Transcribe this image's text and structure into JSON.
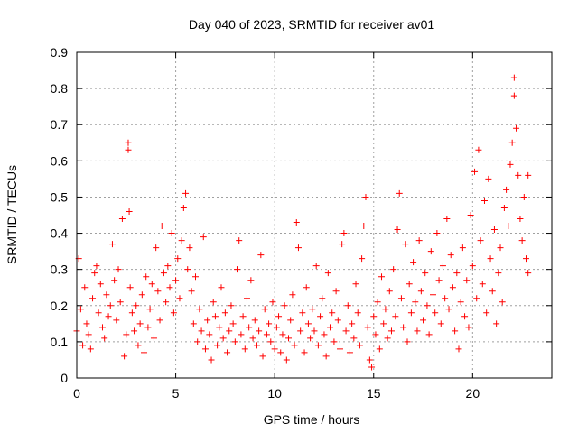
{
  "chart_data": {
    "type": "scatter",
    "title": "Day 040 of 2023, SRMTID for receiver av01",
    "xlabel": "GPS time / hours",
    "ylabel": "SRMTID / TECUs",
    "xlim": [
      0,
      24
    ],
    "ylim": [
      0,
      0.9
    ],
    "xticks": [
      0,
      5,
      10,
      15,
      20
    ],
    "xtick_labels": [
      "0",
      "5",
      "10",
      "15",
      "20"
    ],
    "yticks": [
      0,
      0.1,
      0.2,
      0.3,
      0.4,
      0.5,
      0.6,
      0.7,
      0.8,
      0.9
    ],
    "ytick_labels": [
      "0",
      "0.1",
      "0.2",
      "0.3",
      "0.4",
      "0.5",
      "0.6",
      "0.7",
      "0.8",
      "0.9"
    ],
    "grid": true,
    "marker": "plus",
    "marker_color": "#ff0000",
    "series": [
      {
        "name": "SRMTID",
        "points": [
          [
            0.0,
            0.13
          ],
          [
            0.1,
            0.33
          ],
          [
            0.2,
            0.19
          ],
          [
            0.3,
            0.09
          ],
          [
            0.4,
            0.25
          ],
          [
            0.5,
            0.15
          ],
          [
            0.6,
            0.12
          ],
          [
            0.7,
            0.08
          ],
          [
            0.8,
            0.22
          ],
          [
            0.9,
            0.29
          ],
          [
            1.0,
            0.31
          ],
          [
            1.1,
            0.18
          ],
          [
            1.2,
            0.26
          ],
          [
            1.3,
            0.14
          ],
          [
            1.4,
            0.11
          ],
          [
            1.5,
            0.23
          ],
          [
            1.6,
            0.17
          ],
          [
            1.7,
            0.2
          ],
          [
            1.8,
            0.37
          ],
          [
            1.9,
            0.27
          ],
          [
            2.0,
            0.16
          ],
          [
            2.1,
            0.3
          ],
          [
            2.2,
            0.21
          ],
          [
            2.3,
            0.44
          ],
          [
            2.4,
            0.06
          ],
          [
            2.5,
            0.12
          ],
          [
            2.6,
            0.65
          ],
          [
            2.6,
            0.63
          ],
          [
            2.65,
            0.46
          ],
          [
            2.7,
            0.25
          ],
          [
            2.8,
            0.18
          ],
          [
            2.9,
            0.13
          ],
          [
            3.0,
            0.2
          ],
          [
            3.1,
            0.09
          ],
          [
            3.2,
            0.15
          ],
          [
            3.3,
            0.23
          ],
          [
            3.4,
            0.07
          ],
          [
            3.5,
            0.28
          ],
          [
            3.6,
            0.14
          ],
          [
            3.7,
            0.19
          ],
          [
            3.8,
            0.26
          ],
          [
            3.9,
            0.11
          ],
          [
            4.0,
            0.36
          ],
          [
            4.1,
            0.24
          ],
          [
            4.2,
            0.16
          ],
          [
            4.3,
            0.42
          ],
          [
            4.4,
            0.29
          ],
          [
            4.5,
            0.21
          ],
          [
            4.6,
            0.31
          ],
          [
            4.7,
            0.25
          ],
          [
            4.8,
            0.4
          ],
          [
            4.9,
            0.18
          ],
          [
            5.0,
            0.27
          ],
          [
            5.1,
            0.33
          ],
          [
            5.2,
            0.22
          ],
          [
            5.3,
            0.38
          ],
          [
            5.4,
            0.47
          ],
          [
            5.5,
            0.51
          ],
          [
            5.6,
            0.3
          ],
          [
            5.7,
            0.36
          ],
          [
            5.8,
            0.24
          ],
          [
            5.9,
            0.15
          ],
          [
            6.0,
            0.28
          ],
          [
            6.1,
            0.1
          ],
          [
            6.2,
            0.19
          ],
          [
            6.3,
            0.13
          ],
          [
            6.4,
            0.39
          ],
          [
            6.5,
            0.08
          ],
          [
            6.6,
            0.16
          ],
          [
            6.7,
            0.12
          ],
          [
            6.8,
            0.05
          ],
          [
            6.9,
            0.21
          ],
          [
            7.0,
            0.17
          ],
          [
            7.1,
            0.09
          ],
          [
            7.2,
            0.14
          ],
          [
            7.3,
            0.25
          ],
          [
            7.4,
            0.11
          ],
          [
            7.5,
            0.18
          ],
          [
            7.6,
            0.07
          ],
          [
            7.7,
            0.13
          ],
          [
            7.8,
            0.2
          ],
          [
            7.9,
            0.15
          ],
          [
            8.0,
            0.1
          ],
          [
            8.1,
            0.3
          ],
          [
            8.2,
            0.38
          ],
          [
            8.3,
            0.12
          ],
          [
            8.4,
            0.17
          ],
          [
            8.5,
            0.08
          ],
          [
            8.6,
            0.22
          ],
          [
            8.7,
            0.14
          ],
          [
            8.8,
            0.27
          ],
          [
            8.9,
            0.11
          ],
          [
            9.0,
            0.16
          ],
          [
            9.1,
            0.09
          ],
          [
            9.2,
            0.13
          ],
          [
            9.3,
            0.34
          ],
          [
            9.4,
            0.06
          ],
          [
            9.5,
            0.19
          ],
          [
            9.6,
            0.12
          ],
          [
            9.7,
            0.15
          ],
          [
            9.8,
            0.1
          ],
          [
            9.9,
            0.21
          ],
          [
            10.0,
            0.08
          ],
          [
            10.1,
            0.14
          ],
          [
            10.2,
            0.17
          ],
          [
            10.3,
            0.07
          ],
          [
            10.4,
            0.12
          ],
          [
            10.5,
            0.2
          ],
          [
            10.6,
            0.05
          ],
          [
            10.7,
            0.11
          ],
          [
            10.8,
            0.16
          ],
          [
            10.9,
            0.23
          ],
          [
            11.0,
            0.09
          ],
          [
            11.1,
            0.43
          ],
          [
            11.2,
            0.36
          ],
          [
            11.3,
            0.13
          ],
          [
            11.4,
            0.18
          ],
          [
            11.5,
            0.07
          ],
          [
            11.6,
            0.25
          ],
          [
            11.7,
            0.15
          ],
          [
            11.8,
            0.11
          ],
          [
            11.9,
            0.19
          ],
          [
            12.0,
            0.13
          ],
          [
            12.1,
            0.31
          ],
          [
            12.2,
            0.09
          ],
          [
            12.3,
            0.17
          ],
          [
            12.4,
            0.22
          ],
          [
            12.5,
            0.12
          ],
          [
            12.6,
            0.06
          ],
          [
            12.7,
            0.29
          ],
          [
            12.8,
            0.14
          ],
          [
            12.9,
            0.18
          ],
          [
            13.0,
            0.1
          ],
          [
            13.1,
            0.24
          ],
          [
            13.2,
            0.16
          ],
          [
            13.3,
            0.08
          ],
          [
            13.4,
            0.37
          ],
          [
            13.5,
            0.4
          ],
          [
            13.6,
            0.13
          ],
          [
            13.7,
            0.2
          ],
          [
            13.8,
            0.07
          ],
          [
            13.9,
            0.15
          ],
          [
            14.0,
            0.11
          ],
          [
            14.1,
            0.26
          ],
          [
            14.2,
            0.18
          ],
          [
            14.3,
            0.09
          ],
          [
            14.4,
            0.33
          ],
          [
            14.5,
            0.42
          ],
          [
            14.6,
            0.5
          ],
          [
            14.7,
            0.14
          ],
          [
            14.8,
            0.05
          ],
          [
            14.9,
            0.03
          ],
          [
            15.0,
            0.17
          ],
          [
            15.1,
            0.12
          ],
          [
            15.2,
            0.21
          ],
          [
            15.3,
            0.08
          ],
          [
            15.4,
            0.28
          ],
          [
            15.5,
            0.15
          ],
          [
            15.6,
            0.19
          ],
          [
            15.7,
            0.11
          ],
          [
            15.8,
            0.24
          ],
          [
            15.9,
            0.13
          ],
          [
            16.0,
            0.3
          ],
          [
            16.1,
            0.17
          ],
          [
            16.2,
            0.41
          ],
          [
            16.3,
            0.51
          ],
          [
            16.4,
            0.22
          ],
          [
            16.5,
            0.14
          ],
          [
            16.6,
            0.37
          ],
          [
            16.7,
            0.1
          ],
          [
            16.8,
            0.26
          ],
          [
            16.9,
            0.18
          ],
          [
            17.0,
            0.32
          ],
          [
            17.1,
            0.21
          ],
          [
            17.2,
            0.13
          ],
          [
            17.3,
            0.38
          ],
          [
            17.4,
            0.24
          ],
          [
            17.5,
            0.16
          ],
          [
            17.6,
            0.29
          ],
          [
            17.7,
            0.2
          ],
          [
            17.8,
            0.12
          ],
          [
            17.9,
            0.35
          ],
          [
            18.0,
            0.23
          ],
          [
            18.1,
            0.18
          ],
          [
            18.2,
            0.4
          ],
          [
            18.3,
            0.27
          ],
          [
            18.4,
            0.15
          ],
          [
            18.5,
            0.31
          ],
          [
            18.6,
            0.22
          ],
          [
            18.7,
            0.44
          ],
          [
            18.8,
            0.19
          ],
          [
            18.9,
            0.34
          ],
          [
            19.0,
            0.25
          ],
          [
            19.1,
            0.13
          ],
          [
            19.2,
            0.29
          ],
          [
            19.3,
            0.08
          ],
          [
            19.4,
            0.21
          ],
          [
            19.5,
            0.36
          ],
          [
            19.6,
            0.17
          ],
          [
            19.7,
            0.27
          ],
          [
            19.8,
            0.14
          ],
          [
            19.9,
            0.45
          ],
          [
            20.0,
            0.31
          ],
          [
            20.1,
            0.57
          ],
          [
            20.2,
            0.22
          ],
          [
            20.3,
            0.63
          ],
          [
            20.4,
            0.38
          ],
          [
            20.5,
            0.26
          ],
          [
            20.6,
            0.49
          ],
          [
            20.7,
            0.18
          ],
          [
            20.8,
            0.55
          ],
          [
            20.9,
            0.33
          ],
          [
            21.0,
            0.24
          ],
          [
            21.1,
            0.41
          ],
          [
            21.2,
            0.15
          ],
          [
            21.3,
            0.29
          ],
          [
            21.4,
            0.36
          ],
          [
            21.5,
            0.21
          ],
          [
            21.6,
            0.47
          ],
          [
            21.7,
            0.52
          ],
          [
            21.8,
            0.42
          ],
          [
            21.9,
            0.59
          ],
          [
            22.0,
            0.65
          ],
          [
            22.1,
            0.83
          ],
          [
            22.1,
            0.78
          ],
          [
            22.2,
            0.69
          ],
          [
            22.3,
            0.56
          ],
          [
            22.4,
            0.44
          ],
          [
            22.5,
            0.38
          ],
          [
            22.6,
            0.5
          ],
          [
            22.7,
            0.33
          ],
          [
            22.8,
            0.29
          ],
          [
            22.8,
            0.56
          ]
        ]
      }
    ]
  }
}
